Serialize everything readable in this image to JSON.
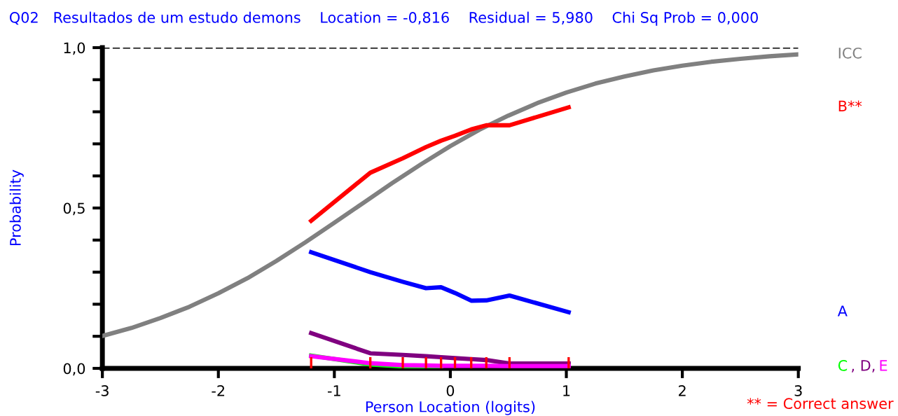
{
  "chart_data": {
    "type": "line",
    "title": "Q02   Resultados de um estudo demons    Location = -0,816    Residual = 5,980    Chi Sq Prob = 0,000",
    "xlabel": "Person Location (logits)",
    "ylabel": "Probability",
    "annotations": [
      "** = Correct answer"
    ],
    "xlim": [
      -3,
      3
    ],
    "xticks": [
      -3,
      -2,
      -1,
      0,
      1,
      2,
      3
    ],
    "ylim": [
      0,
      1
    ],
    "yticks": [
      {
        "value": 0,
        "label": "0,0"
      },
      {
        "value": 0.1,
        "label": null
      },
      {
        "value": 0.2,
        "label": null
      },
      {
        "value": 0.3,
        "label": null
      },
      {
        "value": 0.4,
        "label": null
      },
      {
        "value": 0.5,
        "label": "0,5"
      },
      {
        "value": 0.6,
        "label": null
      },
      {
        "value": 0.7,
        "label": null
      },
      {
        "value": 0.8,
        "label": null
      },
      {
        "value": 0.9,
        "label": null
      },
      {
        "value": 1,
        "label": "1,0"
      }
    ],
    "ref_lines": [
      {
        "axis": "y",
        "value": 1,
        "label": null,
        "color": "#000000",
        "line_style": "dashed"
      }
    ],
    "grid": false,
    "legend": false,
    "marker": "none",
    "series": [
      {
        "name": "ICC",
        "color": "#808080",
        "x": [
          -3,
          -2.75,
          -2.5,
          -2.25,
          -2,
          -1.75,
          -1.5,
          -1.25,
          -1,
          -0.75,
          -0.5,
          -0.25,
          0,
          0.25,
          0.5,
          0.75,
          1,
          1.25,
          1.5,
          1.75,
          2,
          2.25,
          2.5,
          2.75,
          3
        ],
        "values": [
          0.101,
          0.126,
          0.157,
          0.192,
          0.234,
          0.281,
          0.335,
          0.393,
          0.454,
          0.516,
          0.578,
          0.637,
          0.693,
          0.744,
          0.788,
          0.827,
          0.86,
          0.888,
          0.91,
          0.929,
          0.944,
          0.956,
          0.965,
          0.973,
          0.979
        ]
      },
      {
        "name": "B**",
        "color": "#ff0000",
        "x": [
          -1.2,
          -0.69,
          -0.41,
          -0.21,
          -0.08,
          0.04,
          0.18,
          0.31,
          0.51,
          1.02
        ],
        "values": [
          0.46,
          0.61,
          0.655,
          0.69,
          0.71,
          0.725,
          0.745,
          0.758,
          0.758,
          0.814
        ]
      },
      {
        "name": "A",
        "color": "#0000ff",
        "x": [
          -1.2,
          -0.69,
          -0.41,
          -0.21,
          -0.08,
          0.04,
          0.18,
          0.31,
          0.51,
          1.02
        ],
        "values": [
          0.362,
          0.3,
          0.27,
          0.25,
          0.253,
          0.235,
          0.211,
          0.212,
          0.227,
          0.175
        ]
      },
      {
        "name": "C",
        "color": "#00ff00",
        "x": [
          -1.2,
          -0.69,
          -0.41,
          -0.21,
          -0.08
        ],
        "values": [
          0.04,
          0.012,
          0.006,
          0.005,
          0.005
        ]
      },
      {
        "name": ", D,",
        "color": "#800080",
        "x": [
          -1.2,
          -0.69,
          -0.41,
          -0.21,
          -0.08,
          0.04,
          0.18,
          0.31,
          0.51,
          1.02
        ],
        "values": [
          0.11,
          0.047,
          0.042,
          0.038,
          0.035,
          0.032,
          0.029,
          0.026,
          0.015,
          0.015
        ]
      },
      {
        "name": "E",
        "color": "#ff00ff",
        "x": [
          -1.2,
          -0.69,
          -0.41,
          -0.21,
          -0.08,
          0.04,
          0.18,
          0.31,
          0.51,
          1.02
        ],
        "values": [
          0.038,
          0.016,
          0.01,
          0.009,
          0.008,
          0.008,
          0.008,
          0.008,
          0.007,
          0.007
        ]
      },
      {
        "type": "bar",
        "color": "#ff0000",
        "x": [
          -1.2,
          -0.69,
          -0.41,
          -0.21,
          -0.08,
          0.04,
          0.18,
          0.31,
          0.51,
          1.02
        ],
        "values": [
          0.035,
          0.035,
          0.035,
          0.035,
          0.035,
          0.035,
          0.035,
          0.035,
          0.035,
          0.035
        ]
      }
    ]
  }
}
